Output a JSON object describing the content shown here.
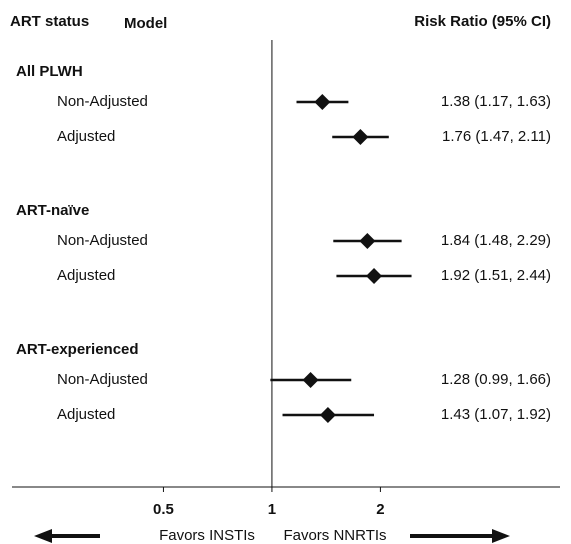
{
  "chart_data": {
    "type": "forest",
    "headers": {
      "group": "ART status",
      "model": "Model",
      "estimate": "Risk Ratio (95% CI)"
    },
    "log_scale": true,
    "xlim": [
      0.19,
      6.3
    ],
    "xticks": [
      0.5,
      1,
      2
    ],
    "color": "#111111",
    "groups": [
      {
        "name": "All PLWH",
        "rows": [
          {
            "model": "Non-Adjusted",
            "value": 1.38,
            "lower": 1.17,
            "upper": 1.63,
            "label": "1.38 (1.17, 1.63)"
          },
          {
            "model": "Adjusted",
            "value": 1.76,
            "lower": 1.47,
            "upper": 2.11,
            "label": "1.76 (1.47, 2.11)"
          }
        ]
      },
      {
        "name": "ART-naïve",
        "rows": [
          {
            "model": "Non-Adjusted",
            "value": 1.84,
            "lower": 1.48,
            "upper": 2.29,
            "label": "1.84 (1.48, 2.29)"
          },
          {
            "model": "Adjusted",
            "value": 1.92,
            "lower": 1.51,
            "upper": 2.44,
            "label": "1.92 (1.51, 2.44)"
          }
        ]
      },
      {
        "name": "ART-experienced",
        "rows": [
          {
            "model": "Non-Adjusted",
            "value": 1.28,
            "lower": 0.99,
            "upper": 1.66,
            "label": "1.28 (0.99, 1.66)"
          },
          {
            "model": "Adjusted",
            "value": 1.43,
            "lower": 1.07,
            "upper": 1.92,
            "label": "1.43 (1.07, 1.92)"
          }
        ]
      }
    ],
    "annotations": {
      "left": "Favors INSTIs",
      "right": "Favors NNRTIs"
    }
  }
}
